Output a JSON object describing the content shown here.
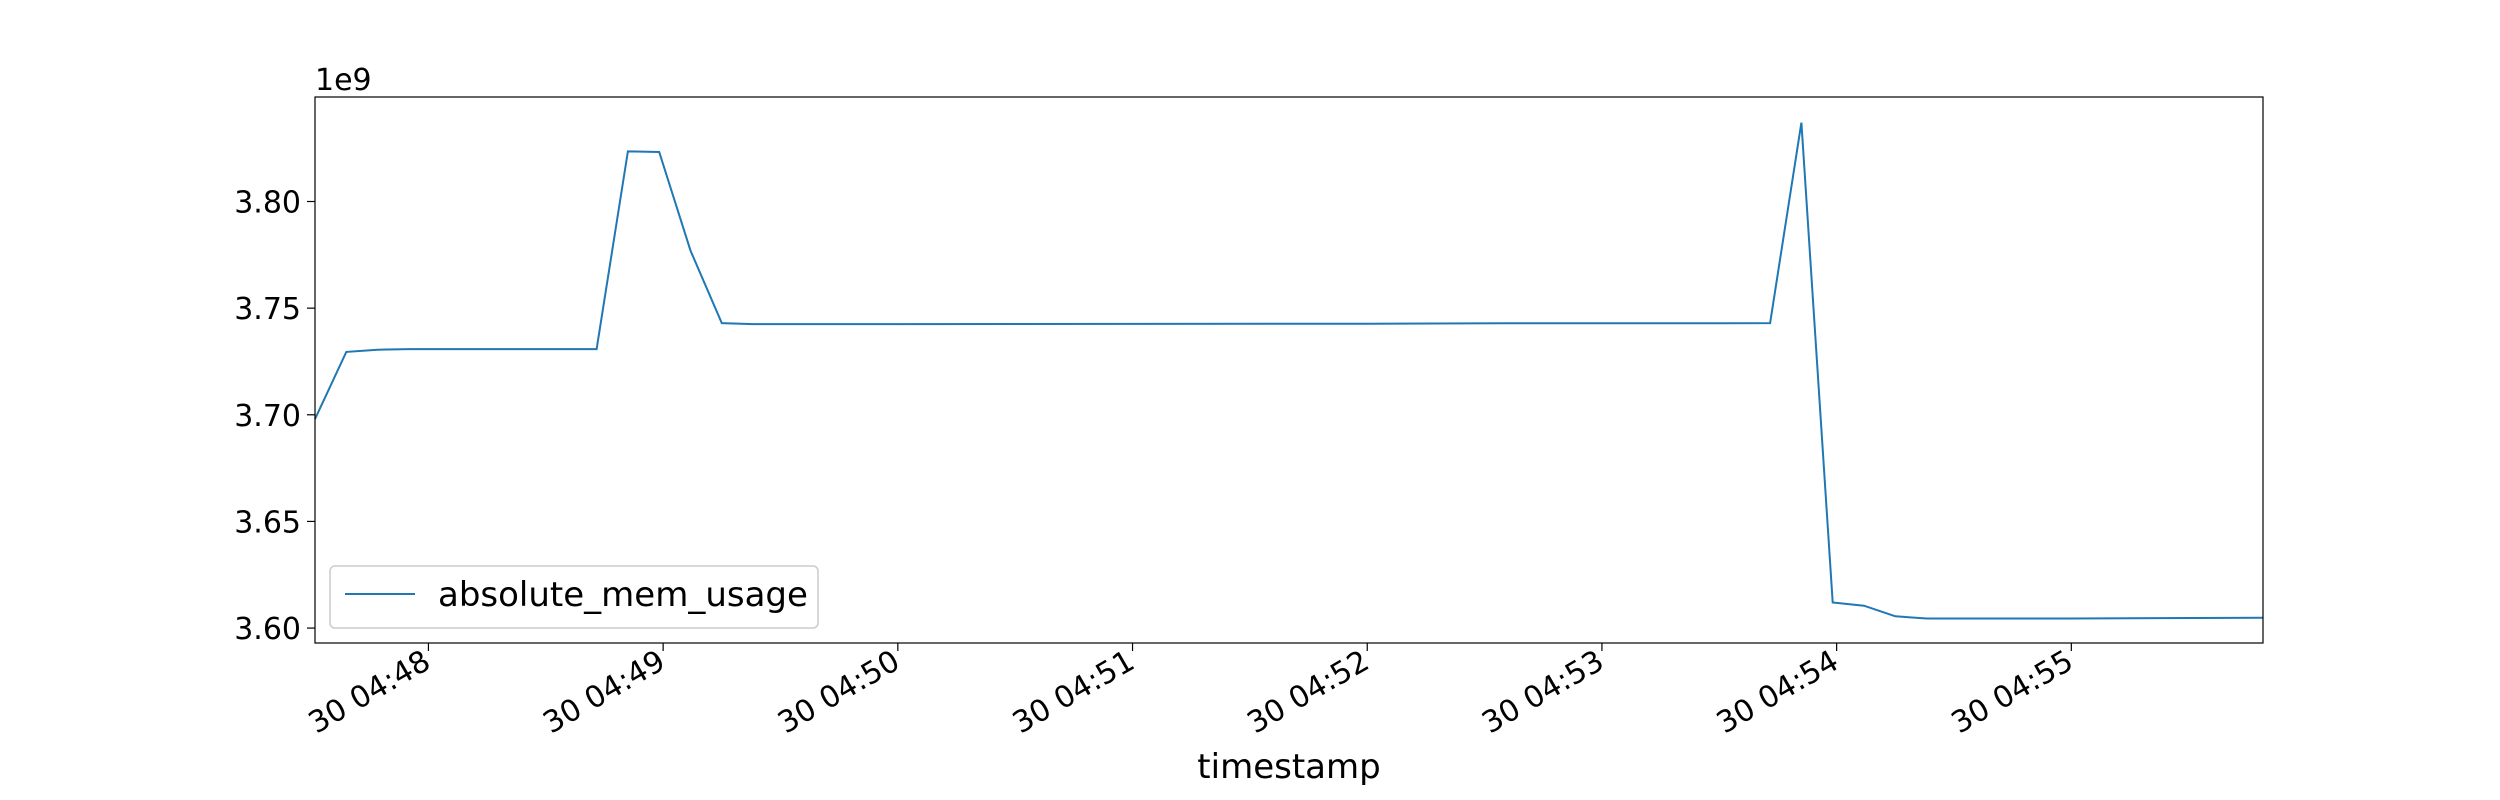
{
  "chart_data": {
    "type": "line",
    "xlabel": "timestamp",
    "ylabel": "",
    "title": "",
    "y_offset_label": "1e9",
    "y_multiplier": 1000000000,
    "xlim": [
      "30 04:47:31",
      "30 04:55:49"
    ],
    "ylim": [
      3.593,
      3.849
    ],
    "x_ticks": [
      {
        "t": "30 04:48:00",
        "label": "30 04:48"
      },
      {
        "t": "30 04:49:00",
        "label": "30 04:49"
      },
      {
        "t": "30 04:50:00",
        "label": "30 04:50"
      },
      {
        "t": "30 04:51:00",
        "label": "30 04:51"
      },
      {
        "t": "30 04:52:00",
        "label": "30 04:52"
      },
      {
        "t": "30 04:53:00",
        "label": "30 04:53"
      },
      {
        "t": "30 04:54:00",
        "label": "30 04:54"
      },
      {
        "t": "30 04:55:00",
        "label": "30 04:55"
      }
    ],
    "y_ticks": [
      {
        "v": 3.6,
        "label": "3.60"
      },
      {
        "v": 3.65,
        "label": "3.65"
      },
      {
        "v": 3.7,
        "label": "3.70"
      },
      {
        "v": 3.75,
        "label": "3.75"
      },
      {
        "v": 3.8,
        "label": "3.80"
      }
    ],
    "legend_position": "lower-left",
    "grid": false,
    "series": [
      {
        "name": "absolute_mem_usage",
        "color": "#1f77b4",
        "x": [
          "30 04:47:31",
          "30 04:47:39",
          "30 04:47:47",
          "30 04:47:55",
          "30 04:48:03",
          "30 04:48:11",
          "30 04:48:19",
          "30 04:48:27",
          "30 04:48:35",
          "30 04:48:43",
          "30 04:48:51",
          "30 04:48:59",
          "30 04:49:07",
          "30 04:49:15",
          "30 04:49:23",
          "30 04:49:31",
          "30 04:50:00",
          "30 04:51:00",
          "30 04:52:00",
          "30 04:52:35",
          "30 04:53:00",
          "30 04:53:30",
          "30 04:53:43",
          "30 04:53:51",
          "30 04:53:59",
          "30 04:54:07",
          "30 04:54:15",
          "30 04:54:23",
          "30 04:54:31",
          "30 04:55:00",
          "30 04:55:49"
        ],
        "y": [
          3.698,
          3.7295,
          3.7305,
          3.7308,
          3.7308,
          3.7308,
          3.7308,
          3.7308,
          3.7308,
          3.7308,
          3.8235,
          3.8232,
          3.777,
          3.743,
          3.7425,
          3.7425,
          3.7425,
          3.7426,
          3.7427,
          3.7429,
          3.7429,
          3.7429,
          3.743,
          3.837,
          3.612,
          3.6105,
          3.6055,
          3.6045,
          3.6045,
          3.6045,
          3.6048
        ]
      }
    ]
  }
}
